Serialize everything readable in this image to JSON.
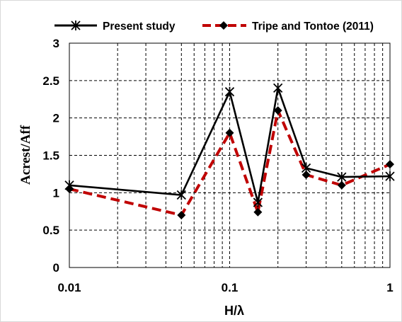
{
  "chart_data": {
    "type": "line",
    "xscale": "log",
    "xlim": [
      0.01,
      1
    ],
    "ylim": [
      0,
      3
    ],
    "xlabel": "H/λ",
    "ylabel": "Acrest/Aff",
    "xticks": [
      "0.01",
      "0.1",
      "1"
    ],
    "yticks": [
      "0",
      "0.5",
      "1",
      "1.5",
      "2",
      "2.5",
      "3"
    ],
    "grid": true,
    "legend_position": "top",
    "series": [
      {
        "name": "Present study",
        "color": "#000000",
        "line_style": "solid",
        "marker": "asterisk",
        "x": [
          0.01,
          0.05,
          0.1,
          0.15,
          0.2,
          0.3,
          0.5,
          1
        ],
        "y": [
          1.1,
          0.97,
          2.35,
          0.87,
          2.4,
          1.33,
          1.21,
          1.22
        ]
      },
      {
        "name": "Tripe and Tontoe (2011)",
        "color": "#c00000",
        "line_style": "dashed",
        "marker": "diamond",
        "x": [
          0.01,
          0.05,
          0.1,
          0.15,
          0.2,
          0.3,
          0.5,
          1
        ],
        "y": [
          1.05,
          0.7,
          1.8,
          0.74,
          2.1,
          1.24,
          1.1,
          1.38
        ]
      }
    ]
  }
}
